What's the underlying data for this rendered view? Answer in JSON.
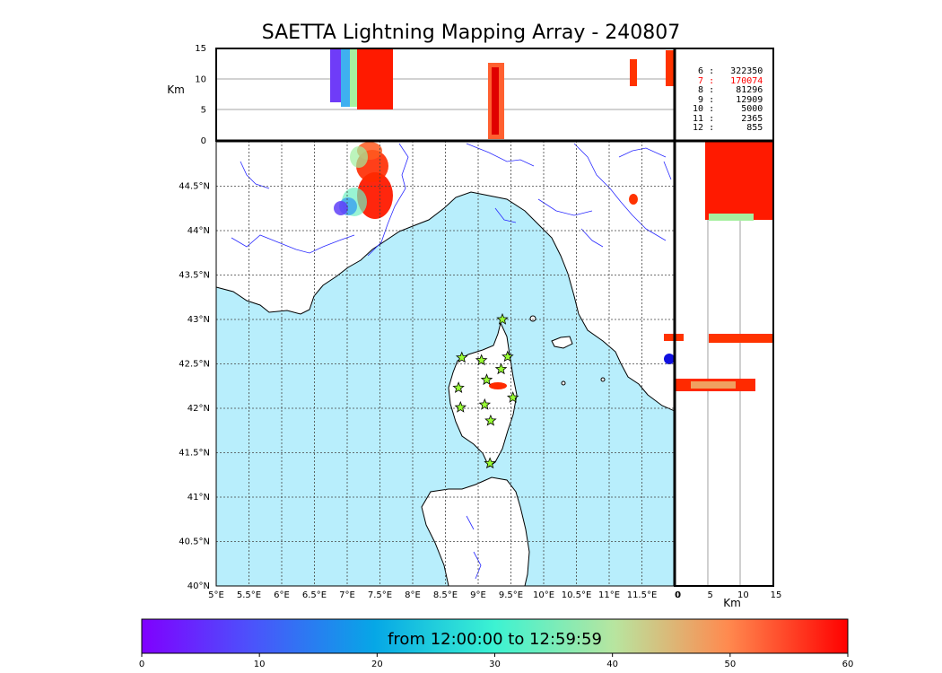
{
  "title": "SAETTA Lightning Mapping Array - 240807",
  "altitude_axis": {
    "label": "Km",
    "ticks": [
      "15",
      "10",
      "5",
      "0"
    ],
    "range": [
      0,
      15
    ],
    "gridlines": [
      5,
      10
    ]
  },
  "lat_axis": {
    "ticks": [
      "44.5°N",
      "44°N",
      "43.5°N",
      "43°N",
      "42.5°N",
      "42°N",
      "41.5°N",
      "41°N",
      "40.5°N",
      "40°N"
    ],
    "range": [
      40,
      45
    ]
  },
  "lon_axis": {
    "ticks": [
      "5°E",
      "5.5°E",
      "6°E",
      "6.5°E",
      "7°E",
      "7.5°E",
      "8°E",
      "8.5°E",
      "9°E",
      "9.5°E",
      "10°E",
      "10.5°E",
      "11°E",
      "11.5°E",
      "0"
    ],
    "range": [
      5,
      12
    ]
  },
  "side_axis": {
    "label": "Km",
    "ticks": [
      "0",
      "5",
      "10",
      "15"
    ],
    "range": [
      0,
      15
    ]
  },
  "stats": [
    {
      "minute": "6",
      "count": "322350",
      "color": "#000000"
    },
    {
      "minute": "7",
      "count": "170074",
      "color": "#ff0000"
    },
    {
      "minute": "8",
      "count": "81296",
      "color": "#000000"
    },
    {
      "minute": "9",
      "count": "12909",
      "color": "#000000"
    },
    {
      "minute": "10",
      "count": "5000",
      "color": "#000000"
    },
    {
      "minute": "11",
      "count": "2365",
      "color": "#000000"
    },
    {
      "minute": "12",
      "count": "855",
      "color": "#000000"
    }
  ],
  "colorbar": {
    "label": "from 12:00:00 to 12:59:59",
    "ticks": [
      "0",
      "10",
      "20",
      "30",
      "40",
      "50",
      "60"
    ],
    "range": [
      0,
      60
    ],
    "colormap": "rainbow"
  },
  "colors": {
    "sea": "#b8eefc",
    "land": "#ffffff",
    "rivers": "#2a2aff",
    "grid": "#555555",
    "station_marker": "#99ff33"
  },
  "stations": [
    {
      "lon": 9.37,
      "lat": 43.0
    },
    {
      "lon": 8.75,
      "lat": 42.57
    },
    {
      "lon": 9.05,
      "lat": 42.54
    },
    {
      "lon": 9.45,
      "lat": 42.58
    },
    {
      "lon": 9.35,
      "lat": 42.44
    },
    {
      "lon": 9.13,
      "lat": 42.32
    },
    {
      "lon": 8.7,
      "lat": 42.23
    },
    {
      "lon": 9.53,
      "lat": 42.12
    },
    {
      "lon": 9.1,
      "lat": 42.04
    },
    {
      "lon": 8.73,
      "lat": 42.01
    },
    {
      "lon": 9.19,
      "lat": 41.86
    },
    {
      "lon": 9.18,
      "lat": 41.38
    }
  ]
}
